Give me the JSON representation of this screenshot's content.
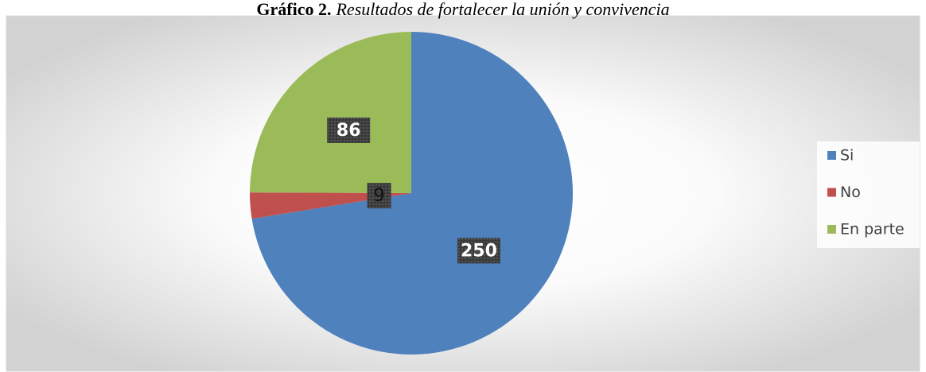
{
  "chart_data": {
    "type": "pie",
    "title_label": "Gráfico 2.",
    "title": "Resultados de fortalecer la unión y convivencia",
    "categories": [
      "Si",
      "No",
      "En parte"
    ],
    "values": [
      250,
      9,
      86
    ],
    "colors": [
      "#4f81bd",
      "#c0504d",
      "#9bbb59"
    ],
    "legend": "right"
  }
}
